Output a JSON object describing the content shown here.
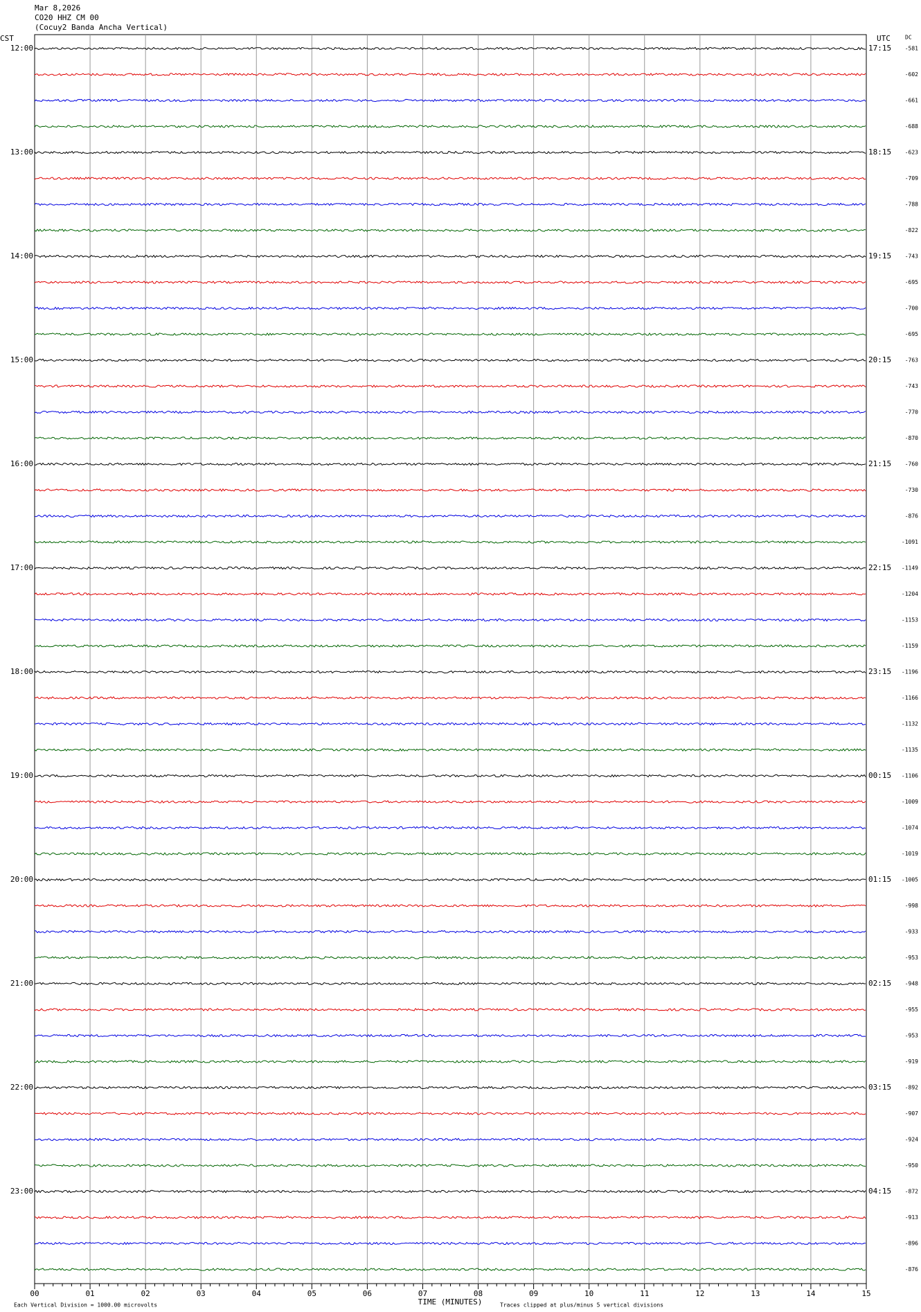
{
  "header": {
    "lines": [
      "Mar 8,2026",
      "CO20 HHZ CM 00",
      "(Cocuy2 Banda Ancha Vertical)"
    ]
  },
  "left_label": "CST",
  "right_label": "UTC",
  "offset_label": "DC",
  "traces": [
    {
      "cst": "12:00",
      "utc": "17:15",
      "dc": "-581",
      "color": "#000000"
    },
    {
      "dc": "-602",
      "color": "#e00000"
    },
    {
      "dc": "-661",
      "color": "#0000e0"
    },
    {
      "dc": "-688",
      "color": "#006400"
    },
    {
      "cst": "13:00",
      "utc": "18:15",
      "dc": "-623",
      "color": "#000000"
    },
    {
      "dc": "-709",
      "color": "#e00000"
    },
    {
      "dc": "-788",
      "color": "#0000e0"
    },
    {
      "dc": "-822",
      "color": "#006400"
    },
    {
      "cst": "14:00",
      "utc": "19:15",
      "dc": "-743",
      "color": "#000000"
    },
    {
      "dc": "-695",
      "color": "#e00000"
    },
    {
      "dc": "-700",
      "color": "#0000e0"
    },
    {
      "dc": "-695",
      "color": "#006400"
    },
    {
      "cst": "15:00",
      "utc": "20:15",
      "dc": "-763",
      "color": "#000000"
    },
    {
      "dc": "-743",
      "color": "#e00000"
    },
    {
      "dc": "-770",
      "color": "#0000e0"
    },
    {
      "dc": "-870",
      "color": "#006400"
    },
    {
      "cst": "16:00",
      "utc": "21:15",
      "dc": "-760",
      "color": "#000000"
    },
    {
      "dc": "-730",
      "color": "#e00000"
    },
    {
      "dc": "-876",
      "color": "#0000e0"
    },
    {
      "dc": "-1091",
      "color": "#006400"
    },
    {
      "cst": "17:00",
      "utc": "22:15",
      "dc": "-1149",
      "color": "#000000"
    },
    {
      "dc": "-1204",
      "color": "#e00000"
    },
    {
      "dc": "-1153",
      "color": "#0000e0"
    },
    {
      "dc": "-1159",
      "color": "#006400"
    },
    {
      "cst": "18:00",
      "utc": "23:15",
      "dc": "-1196",
      "color": "#000000"
    },
    {
      "dc": "-1166",
      "color": "#e00000"
    },
    {
      "dc": "-1132",
      "color": "#0000e0"
    },
    {
      "dc": "-1135",
      "color": "#006400"
    },
    {
      "cst": "19:00",
      "utc": "00:15",
      "dc": "-1106",
      "color": "#000000"
    },
    {
      "dc": "-1009",
      "color": "#e00000"
    },
    {
      "dc": "-1074",
      "color": "#0000e0"
    },
    {
      "dc": "-1019",
      "color": "#006400"
    },
    {
      "cst": "20:00",
      "utc": "01:15",
      "dc": "-1005",
      "color": "#000000"
    },
    {
      "dc": "-998",
      "color": "#e00000"
    },
    {
      "dc": "-933",
      "color": "#0000e0"
    },
    {
      "dc": "-953",
      "color": "#006400"
    },
    {
      "cst": "21:00",
      "utc": "02:15",
      "dc": "-948",
      "color": "#000000"
    },
    {
      "dc": "-955",
      "color": "#e00000"
    },
    {
      "dc": "-953",
      "color": "#0000e0"
    },
    {
      "dc": "-919",
      "color": "#006400"
    },
    {
      "cst": "22:00",
      "utc": "03:15",
      "dc": "-892",
      "color": "#000000"
    },
    {
      "dc": "-907",
      "color": "#e00000"
    },
    {
      "dc": "-924",
      "color": "#0000e0"
    },
    {
      "dc": "-950",
      "color": "#006400"
    },
    {
      "cst": "23:00",
      "utc": "04:15",
      "dc": "-872",
      "color": "#000000"
    },
    {
      "dc": "-913",
      "color": "#e00000"
    },
    {
      "dc": "-896",
      "color": "#0000e0"
    },
    {
      "dc": "-876",
      "color": "#006400"
    }
  ],
  "x_axis": {
    "ticks": [
      "00",
      "01",
      "02",
      "03",
      "04",
      "05",
      "06",
      "07",
      "08",
      "09",
      "10",
      "11",
      "12",
      "13",
      "14",
      "15"
    ],
    "title": "TIME (MINUTES)"
  },
  "footer": {
    "scale": "Each Vertical Division = 1000.00 microvolts",
    "clip": "Traces clipped at plus/minus 5 vertical divisions"
  }
}
